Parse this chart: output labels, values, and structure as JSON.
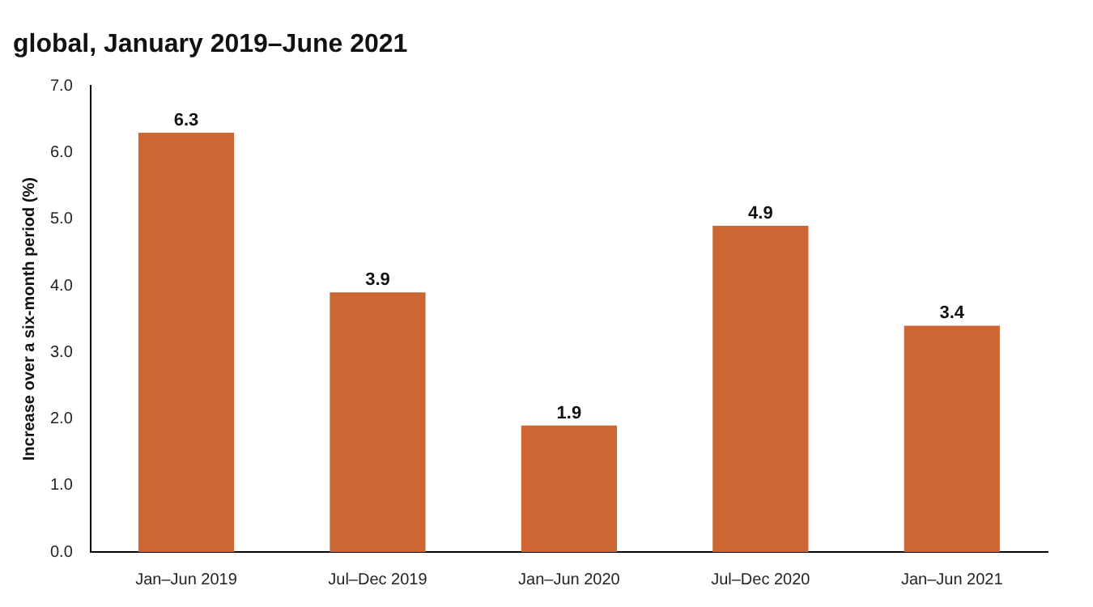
{
  "chart_data": {
    "type": "bar",
    "title": "global, January 2019–June 2021",
    "ylabel": "Increase over a six-month period (%)",
    "categories": [
      "Jan–Jun 2019",
      "Jul–Dec 2019",
      "Jan–Jun 2020",
      "Jul–Dec 2020",
      "Jan–Jun 2021"
    ],
    "values": [
      6.3,
      3.9,
      1.9,
      4.9,
      3.4
    ],
    "color": "#cc6633",
    "data_labels": true,
    "grid": false,
    "legend": false,
    "ylim": [
      0,
      7
    ],
    "yticks": [
      {
        "value": 0,
        "label": "0.0"
      },
      {
        "value": 1,
        "label": "1.0"
      },
      {
        "value": 2,
        "label": "2.0"
      },
      {
        "value": 3,
        "label": "3.0"
      },
      {
        "value": 4,
        "label": "4.0"
      },
      {
        "value": 5,
        "label": "5.0"
      },
      {
        "value": 6,
        "label": "6.0"
      },
      {
        "value": 7,
        "label": "7.0"
      }
    ]
  }
}
